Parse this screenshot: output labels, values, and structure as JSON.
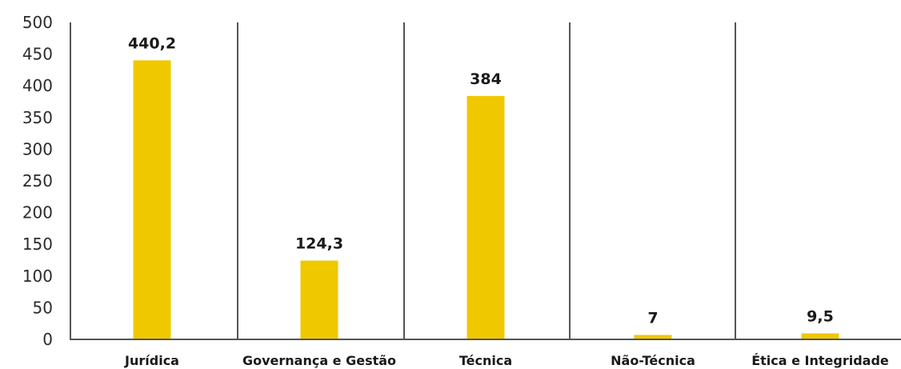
{
  "chart_data": {
    "type": "bar",
    "title": "",
    "xlabel": "",
    "ylabel": "",
    "categories": [
      "Jurídica",
      "Governança e Gestão",
      "Técnica",
      "Não-Técnica",
      "Ética e Integridade"
    ],
    "values": [
      440.2,
      124.3,
      384,
      7,
      9.5
    ],
    "value_labels": [
      "440,2",
      "124,3",
      "384",
      "7",
      "9,5"
    ],
    "ylim": [
      0,
      500
    ],
    "yticks": [
      0,
      50,
      100,
      150,
      200,
      250,
      300,
      350,
      400,
      450,
      500
    ],
    "ytick_labels": [
      "0",
      "50",
      "100",
      "150",
      "200",
      "250",
      "300",
      "350",
      "400",
      "450",
      "500"
    ],
    "grid": false,
    "category_separators": true,
    "legend": "none",
    "bar_color": "#F0C800",
    "axis_color": "#555555"
  }
}
